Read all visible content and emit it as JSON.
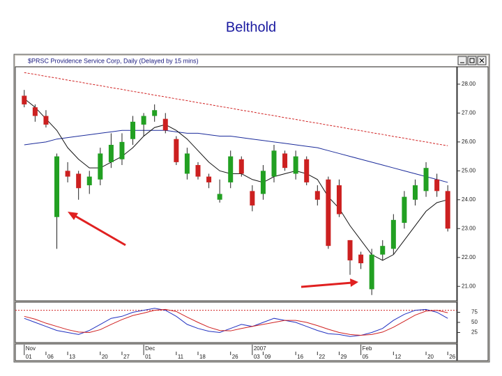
{
  "chart_data": {
    "type": "candlestick",
    "title": "Belthold",
    "window_title": "$PRSC Providence Service Corp, Daily (Delayed by 15 mins)",
    "xlim": [
      -0.5,
      39.5
    ],
    "xticks": [
      {
        "value": 0,
        "label": "01"
      },
      {
        "value": 2,
        "label": "06"
      },
      {
        "value": 4,
        "label": "13"
      },
      {
        "value": 7,
        "label": "20"
      },
      {
        "value": 9,
        "label": "27"
      },
      {
        "value": 11,
        "label": "01"
      },
      {
        "value": 14,
        "label": "11"
      },
      {
        "value": 16,
        "label": "18"
      },
      {
        "value": 19,
        "label": "26"
      },
      {
        "value": 21,
        "label": "03"
      },
      {
        "value": 22,
        "label": "09"
      },
      {
        "value": 25,
        "label": "16"
      },
      {
        "value": 27,
        "label": "22"
      },
      {
        "value": 29,
        "label": "29"
      },
      {
        "value": 31,
        "label": "05"
      },
      {
        "value": 34,
        "label": "12"
      },
      {
        "value": 37,
        "label": "20"
      },
      {
        "value": 39,
        "label": "26"
      }
    ],
    "period_ticks": [
      {
        "value": 0,
        "label": "Nov"
      },
      {
        "value": 11,
        "label": "Dec"
      },
      {
        "value": 21,
        "label": "2007"
      },
      {
        "value": 31,
        "label": "Feb"
      }
    ],
    "ylim": [
      20.5,
      28.6
    ],
    "yticks": [
      {
        "value": 21,
        "label": "21.00"
      },
      {
        "value": 22,
        "label": "22.00"
      },
      {
        "value": 23,
        "label": "23.00"
      },
      {
        "value": 24,
        "label": "24.00"
      },
      {
        "value": 25,
        "label": "25.00"
      },
      {
        "value": 26,
        "label": "26.00"
      },
      {
        "value": 27,
        "label": "27.00"
      },
      {
        "value": 28,
        "label": "28.00"
      }
    ],
    "up_color": "#22a022",
    "down_color": "#cc2020",
    "open": [
      27.6,
      27.2,
      26.9,
      23.4,
      25.0,
      24.9,
      24.5,
      24.7,
      25.3,
      25.4,
      26.1,
      26.6,
      26.9,
      26.8,
      26.1,
      24.9,
      25.2,
      24.8,
      24.0,
      24.6,
      25.4,
      24.3,
      24.2,
      24.8,
      25.6,
      24.9,
      25.4,
      24.3,
      24.7,
      24.5,
      22.6,
      22.1,
      20.9,
      22.1,
      22.3,
      23.2,
      24.0,
      24.3,
      24.7,
      24.3
    ],
    "high": [
      27.8,
      27.3,
      27.1,
      25.6,
      25.3,
      25.0,
      25.0,
      25.8,
      26.3,
      26.3,
      26.9,
      27.0,
      27.3,
      27.0,
      26.2,
      25.8,
      25.3,
      24.9,
      24.7,
      25.7,
      25.5,
      24.5,
      25.2,
      25.9,
      25.7,
      25.7,
      25.5,
      24.5,
      24.8,
      24.7,
      22.6,
      22.2,
      22.3,
      22.6,
      23.5,
      24.3,
      24.7,
      25.3,
      24.9,
      24.5
    ],
    "low": [
      27.2,
      26.7,
      26.5,
      22.3,
      24.6,
      24.0,
      24.2,
      24.5,
      25.1,
      25.2,
      25.9,
      26.2,
      26.7,
      26.3,
      25.2,
      24.7,
      24.7,
      24.4,
      23.9,
      24.4,
      24.8,
      23.6,
      24.0,
      24.6,
      25.0,
      24.7,
      24.5,
      23.8,
      22.3,
      23.4,
      21.4,
      21.6,
      20.7,
      21.9,
      22.1,
      23.0,
      23.8,
      24.1,
      24.1,
      22.9
    ],
    "close": [
      27.3,
      26.9,
      26.6,
      25.5,
      24.8,
      24.4,
      24.8,
      25.6,
      25.9,
      26.0,
      26.7,
      26.9,
      27.1,
      26.4,
      25.3,
      25.6,
      24.8,
      24.6,
      24.2,
      25.5,
      24.9,
      23.8,
      25.0,
      25.7,
      25.1,
      25.5,
      24.6,
      24.0,
      22.4,
      23.5,
      21.9,
      21.8,
      22.1,
      22.4,
      23.3,
      24.1,
      24.5,
      25.1,
      24.3,
      23.0
    ],
    "lines": [
      {
        "color": "#d02020",
        "style": "dashed",
        "values": [
          28.4,
          28.34,
          28.27,
          28.21,
          28.14,
          28.08,
          28.01,
          27.95,
          27.88,
          27.82,
          27.75,
          27.69,
          27.62,
          27.56,
          27.49,
          27.43,
          27.36,
          27.3,
          27.23,
          27.17,
          27.1,
          27.04,
          26.97,
          26.91,
          26.84,
          26.78,
          26.71,
          26.65,
          26.58,
          26.52,
          26.45,
          26.39,
          26.32,
          26.26,
          26.19,
          26.13,
          26.06,
          26.0,
          25.93,
          25.87
        ]
      },
      {
        "color": "#1a2a9a",
        "style": "solid",
        "values": [
          25.9,
          25.95,
          26.0,
          26.1,
          26.15,
          26.2,
          26.25,
          26.3,
          26.35,
          26.4,
          26.4,
          26.4,
          26.4,
          26.4,
          26.35,
          26.3,
          26.3,
          26.25,
          26.2,
          26.2,
          26.15,
          26.1,
          26.05,
          26.0,
          25.95,
          25.9,
          25.85,
          25.8,
          25.7,
          25.6,
          25.5,
          25.4,
          25.3,
          25.2,
          25.1,
          25.0,
          24.9,
          24.8,
          24.7,
          24.6
        ]
      },
      {
        "color": "#111111",
        "style": "solid",
        "values": [
          27.5,
          27.2,
          26.8,
          26.4,
          25.8,
          25.4,
          25.1,
          25.1,
          25.3,
          25.5,
          25.8,
          26.2,
          26.5,
          26.6,
          26.4,
          26.1,
          25.7,
          25.3,
          25.0,
          24.9,
          24.9,
          24.7,
          24.6,
          24.8,
          24.9,
          25.0,
          24.9,
          24.7,
          24.1,
          23.7,
          23.1,
          22.6,
          22.1,
          21.9,
          22.1,
          22.6,
          23.1,
          23.6,
          23.9,
          24.0
        ]
      }
    ],
    "oscillator": {
      "ylim": [
        0,
        100
      ],
      "yticks": [
        25,
        50,
        75
      ],
      "level": 80,
      "lines": [
        {
          "color": "#2030c0",
          "values": [
            60,
            50,
            40,
            30,
            25,
            20,
            30,
            45,
            60,
            65,
            75,
            80,
            85,
            80,
            65,
            45,
            35,
            28,
            25,
            35,
            45,
            40,
            50,
            60,
            55,
            50,
            40,
            30,
            22,
            20,
            15,
            18,
            25,
            35,
            55,
            70,
            80,
            82,
            75,
            60
          ]
        },
        {
          "color": "#d02020",
          "values": [
            65,
            58,
            48,
            40,
            32,
            26,
            25,
            32,
            45,
            57,
            67,
            73,
            80,
            82,
            77,
            63,
            50,
            38,
            30,
            29,
            35,
            40,
            45,
            50,
            55,
            55,
            50,
            42,
            33,
            25,
            20,
            18,
            20,
            26,
            38,
            53,
            68,
            78,
            80,
            74
          ]
        }
      ]
    }
  }
}
